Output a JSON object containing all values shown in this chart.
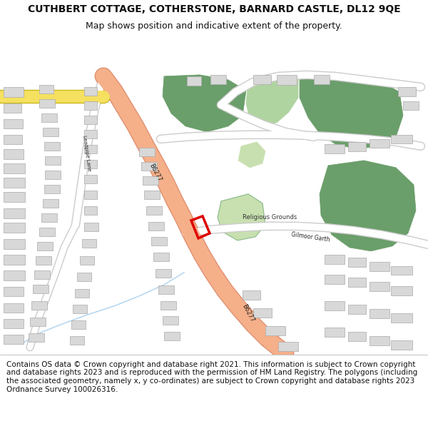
{
  "title": "CUTHBERT COTTAGE, COTHERSTONE, BARNARD CASTLE, DL12 9QE",
  "subtitle": "Map shows position and indicative extent of the property.",
  "footer": "Contains OS data © Crown copyright and database right 2021. This information is subject to Crown copyright and database rights 2023 and is reproduced with the permission of HM Land Registry. The polygons (including the associated geometry, namely x, y co-ordinates) are subject to Crown copyright and database rights 2023 Ordnance Survey 100026316.",
  "bg_color": "#ffffff",
  "map_bg": "#f0f0f0",
  "road_main_color": "#f5b08a",
  "road_main_edge": "#e09070",
  "road_sec_color": "#ffffff",
  "road_sec_edge": "#cccccc",
  "road_lane_color": "#f8f8f8",
  "building_color": "#d8d8d8",
  "building_edge": "#aaaaaa",
  "green_dark": "#6a9e6a",
  "green_light": "#b0d4a0",
  "green_pale": "#c8e0b0",
  "yellow_road": "#f5e060",
  "yellow_road_edge": "#c8b820",
  "property_color": "#dd0000",
  "water_color": "#b8d8f0",
  "title_fontsize": 10,
  "subtitle_fontsize": 9,
  "footer_fontsize": 7.5,
  "label_color": "#222222",
  "road_label_size": 6,
  "street_label_size": 5.5
}
